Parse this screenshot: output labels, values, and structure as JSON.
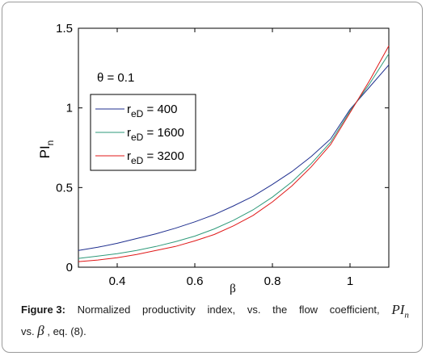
{
  "chart_data": {
    "type": "line",
    "xlabel": "β",
    "ylabel_main": "PI",
    "ylabel_sub": "n",
    "xlim": [
      0.3,
      1.1
    ],
    "ylim": [
      0,
      1.5
    ],
    "xticks": [
      0.4,
      0.6,
      0.8,
      1.0
    ],
    "xtick_labels": [
      "0.4",
      "0.6",
      "0.8",
      "1"
    ],
    "yticks": [
      0,
      0.5,
      1.0,
      1.5
    ],
    "ytick_labels": [
      "0",
      "0.5",
      "1",
      "1.5"
    ],
    "grid": false,
    "annotation": "θ = 0.1",
    "legend_position": "upper-left",
    "series": [
      {
        "name": "reD = 400",
        "legend_main": "r",
        "legend_sub": "eD",
        "legend_value": " = 400",
        "color": "#1f2f8f",
        "x": [
          0.3,
          0.35,
          0.4,
          0.45,
          0.5,
          0.55,
          0.6,
          0.65,
          0.7,
          0.75,
          0.8,
          0.85,
          0.9,
          0.95,
          1.0,
          1.05,
          1.1
        ],
        "y": [
          0.105,
          0.125,
          0.15,
          0.18,
          0.21,
          0.245,
          0.285,
          0.33,
          0.385,
          0.445,
          0.52,
          0.6,
          0.695,
          0.805,
          0.99,
          1.13,
          1.27
        ]
      },
      {
        "name": "reD = 1600",
        "legend_main": "r",
        "legend_sub": "eD",
        "legend_value": " = 1600",
        "color": "#2e9a7a",
        "x": [
          0.3,
          0.35,
          0.4,
          0.45,
          0.5,
          0.55,
          0.6,
          0.65,
          0.7,
          0.75,
          0.8,
          0.85,
          0.9,
          0.95,
          1.0,
          1.05,
          1.1
        ],
        "y": [
          0.055,
          0.07,
          0.085,
          0.105,
          0.13,
          0.16,
          0.195,
          0.24,
          0.295,
          0.36,
          0.44,
          0.535,
          0.65,
          0.785,
          0.98,
          1.15,
          1.34
        ]
      },
      {
        "name": "reD = 3200",
        "legend_main": "r",
        "legend_sub": "eD",
        "legend_value": " = 3200",
        "color": "#e01818",
        "x": [
          0.3,
          0.35,
          0.4,
          0.45,
          0.5,
          0.55,
          0.6,
          0.65,
          0.7,
          0.75,
          0.8,
          0.85,
          0.9,
          0.95,
          1.0,
          1.05,
          1.1
        ],
        "y": [
          0.035,
          0.045,
          0.06,
          0.08,
          0.105,
          0.13,
          0.165,
          0.205,
          0.26,
          0.325,
          0.41,
          0.51,
          0.63,
          0.77,
          0.97,
          1.17,
          1.39
        ]
      }
    ]
  },
  "caption": {
    "label": "Figure 3:",
    "text1_words": [
      "Normalized",
      "productivity",
      "index,",
      "vs.",
      "the",
      "flow",
      "coefficient,"
    ],
    "math1_main": "PI",
    "math1_sub": "n",
    "text2_a": "vs.",
    "math2": "β",
    "text2_b": ", eq. (8)."
  }
}
